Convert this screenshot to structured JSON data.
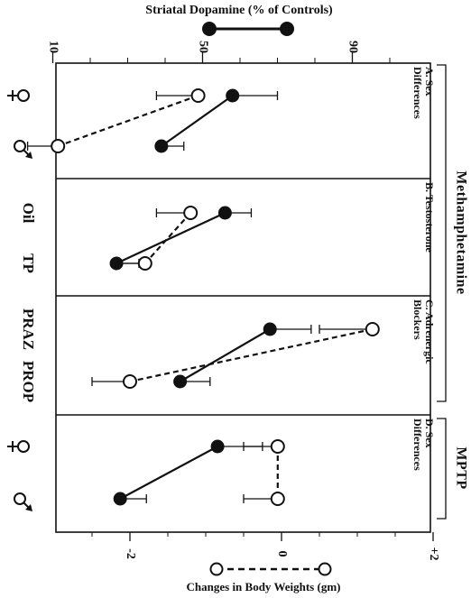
{
  "chart_data": {
    "type": "scatter",
    "orientation": "rotated-90-clockwise",
    "top_axis": {
      "title": "Striatal Dopamine (% of Controls)",
      "ticks": [
        10,
        50,
        90
      ],
      "range": [
        0,
        100
      ],
      "legend_marker": "filled circle, solid line"
    },
    "bottom_axis": {
      "title": "Changes in Body Weights (gm)",
      "ticks": [
        -2,
        0,
        2
      ],
      "tick_labels": [
        "-2",
        "0",
        "+2"
      ],
      "range": [
        -3.0,
        2.0
      ],
      "legend_marker": "open circle, dashed line"
    },
    "group_labels": [
      "Methamphetamine",
      "MPTP"
    ],
    "panels": [
      {
        "label_letter": "A.",
        "label_lines": [
          "Sex",
          "Differences"
        ],
        "categories": [
          {
            "text": "♀",
            "symbol": "female-symbol"
          },
          {
            "text": "♂",
            "symbol": "male-symbol"
          }
        ],
        "dopamine": [
          {
            "value": 58,
            "err": 12
          },
          {
            "value": 39,
            "err": 6
          }
        ],
        "body_weight": [
          {
            "value": -1.1,
            "err": 0.55
          },
          {
            "value": -2.95,
            "err": 0.4
          }
        ]
      },
      {
        "label_letter": "B.",
        "label_lines": [
          "Testosterone"
        ],
        "categories": [
          {
            "text": "Oil"
          },
          {
            "text": "TP"
          }
        ],
        "dopamine": [
          {
            "value": 56,
            "err": 7
          },
          {
            "value": 27,
            "err": 6
          }
        ],
        "body_weight": [
          {
            "value": -1.2,
            "err": 0.45
          },
          {
            "value": -1.8,
            "err": 0.35
          }
        ]
      },
      {
        "label_letter": "C.",
        "label_lines": [
          "Adrenergic",
          "Blockers"
        ],
        "categories": [
          {
            "text": "PRAZ"
          },
          {
            "text": "PROP"
          }
        ],
        "dopamine": [
          {
            "value": 68,
            "err": 11
          },
          {
            "value": 44,
            "err": 8
          }
        ],
        "body_weight": [
          {
            "value": 1.2,
            "err": 0.7
          },
          {
            "value": -2.0,
            "err": 0.5
          }
        ]
      },
      {
        "label_letter": "D.",
        "label_lines": [
          "Sex",
          "Differences"
        ],
        "categories": [
          {
            "text": "♀",
            "symbol": "female-symbol"
          },
          {
            "text": "♂",
            "symbol": "male-symbol"
          }
        ],
        "dopamine": [
          {
            "value": 54,
            "err": 12
          },
          {
            "value": 28,
            "err": 7
          }
        ],
        "body_weight": [
          {
            "value": -0.05,
            "err": 0.45
          },
          {
            "value": -0.05,
            "err": 0.45
          }
        ]
      }
    ]
  }
}
